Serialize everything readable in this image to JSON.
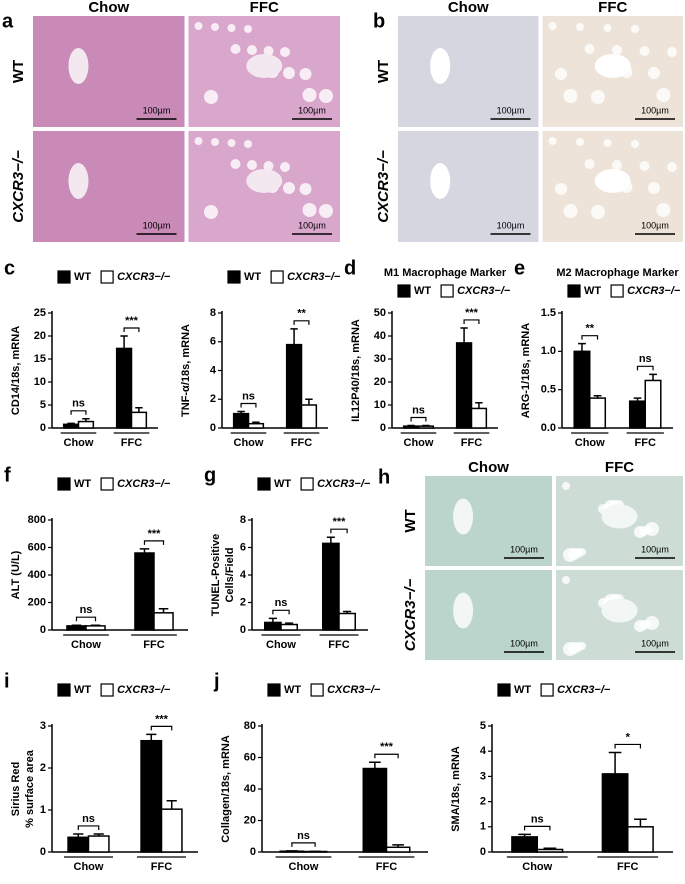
{
  "micrographs": [
    {
      "panel": "a",
      "columns": [
        "Chow",
        "FFC"
      ],
      "rows": [
        "WT",
        "CXCR3−/−"
      ],
      "scale_bar": "100µm"
    },
    {
      "panel": "b",
      "columns": [
        "Chow",
        "FFC"
      ],
      "rows": [
        "WT",
        "CXCR3−/−"
      ],
      "scale_bar": "100µm"
    },
    {
      "panel": "h",
      "columns": [
        "Chow",
        "FFC"
      ],
      "rows": [
        "WT",
        "CXCR3−/−"
      ],
      "scale_bar": "100µm"
    }
  ],
  "chart_data": [
    {
      "type": "bar",
      "panel": "c",
      "ylabel": [
        "CD14/18s, mRNA"
      ],
      "categories": [
        "Chow",
        "FFC"
      ],
      "ylim": [
        0,
        25
      ],
      "yticks": [
        0,
        5,
        10,
        15,
        20,
        25
      ],
      "significance": [
        "ns",
        "***"
      ],
      "series": [
        {
          "name": "WT",
          "color": "#000000",
          "values": [
            0.8,
            17.3
          ],
          "errors": [
            0.2,
            2.7
          ]
        },
        {
          "name": "CXCR3−/−",
          "color": "#ffffff",
          "values": [
            1.4,
            3.4
          ],
          "errors": [
            0.6,
            1.0
          ]
        }
      ]
    },
    {
      "type": "bar",
      "ylabel": [
        "TNF-α/18s, mRNA"
      ],
      "categories": [
        "Chow",
        "FFC"
      ],
      "ylim": [
        0,
        8
      ],
      "yticks": [
        0,
        2,
        4,
        6,
        8
      ],
      "significance": [
        "ns",
        "**"
      ],
      "series": [
        {
          "name": "WT",
          "color": "#000000",
          "values": [
            1.0,
            5.8
          ],
          "errors": [
            0.15,
            1.1
          ]
        },
        {
          "name": "CXCR3−/−",
          "color": "#ffffff",
          "values": [
            0.3,
            1.6
          ],
          "errors": [
            0.1,
            0.4
          ]
        }
      ]
    },
    {
      "type": "bar",
      "panel": "d",
      "title": "M1 Macrophage Marker",
      "ylabel": [
        "IL12P40/18s, mRNA"
      ],
      "categories": [
        "Chow",
        "FFC"
      ],
      "ylim": [
        0,
        50
      ],
      "yticks": [
        0,
        10,
        20,
        30,
        40,
        50
      ],
      "significance": [
        "ns",
        "***"
      ],
      "series": [
        {
          "name": "WT",
          "color": "#000000",
          "values": [
            0.8,
            37
          ],
          "errors": [
            0.3,
            6.5
          ]
        },
        {
          "name": "CXCR3−/−",
          "color": "#ffffff",
          "values": [
            0.8,
            8.5
          ],
          "errors": [
            0.3,
            2.5
          ]
        }
      ]
    },
    {
      "type": "bar",
      "panel": "e",
      "title": "M2 Macrophage Marker",
      "ylabel": [
        "ARG-1/18s, mRNA"
      ],
      "categories": [
        "Chow",
        "FFC"
      ],
      "ylim": [
        0,
        1.5
      ],
      "yticks": [
        {
          "value": 0,
          "label": "0.0"
        },
        0.5,
        {
          "value": 1,
          "label": "1.0"
        },
        1.5
      ],
      "significance": [
        "**",
        "ns"
      ],
      "series": [
        {
          "name": "WT",
          "color": "#000000",
          "values": [
            1.0,
            0.35
          ],
          "errors": [
            0.1,
            0.04
          ]
        },
        {
          "name": "CXCR3−/−",
          "color": "#ffffff",
          "values": [
            0.39,
            0.62
          ],
          "errors": [
            0.03,
            0.08
          ]
        }
      ]
    },
    {
      "type": "bar",
      "panel": "f",
      "ylabel": [
        "ALT (U/L)"
      ],
      "categories": [
        "Chow",
        "FFC"
      ],
      "ylim": [
        0,
        800
      ],
      "yticks": [
        0,
        200,
        400,
        600,
        800
      ],
      "significance": [
        "ns",
        "***"
      ],
      "series": [
        {
          "name": "WT",
          "color": "#000000",
          "values": [
            30,
            560
          ],
          "errors": [
            5,
            30
          ]
        },
        {
          "name": "CXCR3−/−",
          "color": "#ffffff",
          "values": [
            30,
            125
          ],
          "errors": [
            5,
            30
          ]
        }
      ]
    },
    {
      "type": "bar",
      "panel": "g",
      "ylabel": [
        "TUNEL-Positive",
        "Cells/Field"
      ],
      "categories": [
        "Chow",
        "FFC"
      ],
      "ylim": [
        0,
        8
      ],
      "yticks": [
        0,
        2,
        4,
        6,
        8
      ],
      "significance": [
        "ns",
        "***"
      ],
      "series": [
        {
          "name": "WT",
          "color": "#000000",
          "values": [
            0.55,
            6.3
          ],
          "errors": [
            0.3,
            0.45
          ]
        },
        {
          "name": "CXCR3−/−",
          "color": "#ffffff",
          "values": [
            0.4,
            1.2
          ],
          "errors": [
            0.1,
            0.15
          ]
        }
      ]
    },
    {
      "type": "bar",
      "panel": "i",
      "ylabel": [
        "Sirius Red",
        "% surface area"
      ],
      "categories": [
        "Chow",
        "FFC"
      ],
      "ylim": [
        0,
        3
      ],
      "yticks": [
        0,
        1,
        2,
        3
      ],
      "significance": [
        "ns",
        "***"
      ],
      "series": [
        {
          "name": "WT",
          "color": "#000000",
          "values": [
            0.35,
            2.65
          ],
          "errors": [
            0.08,
            0.15
          ]
        },
        {
          "name": "CXCR3−/−",
          "color": "#ffffff",
          "values": [
            0.38,
            1.02
          ],
          "errors": [
            0.05,
            0.2
          ]
        }
      ]
    },
    {
      "type": "bar",
      "panel": "j",
      "ylabel": [
        "Collagen/18s, mRNA"
      ],
      "categories": [
        "Chow",
        "FFC"
      ],
      "ylim": [
        0,
        80
      ],
      "yticks": [
        0,
        20,
        40,
        60,
        80
      ],
      "significance": [
        "ns",
        "***"
      ],
      "series": [
        {
          "name": "WT",
          "color": "#000000",
          "values": [
            0.5,
            53
          ],
          "errors": [
            0.2,
            4
          ]
        },
        {
          "name": "CXCR3−/−",
          "color": "#ffffff",
          "values": [
            0.3,
            3
          ],
          "errors": [
            0.1,
            1.5
          ]
        }
      ]
    },
    {
      "type": "bar",
      "ylabel": [
        "SMA/18s, mRNA"
      ],
      "categories": [
        "Chow",
        "FFC"
      ],
      "ylim": [
        0,
        5
      ],
      "yticks": [
        0,
        1,
        2,
        3,
        4,
        5
      ],
      "significance": [
        "ns",
        "*"
      ],
      "series": [
        {
          "name": "WT",
          "color": "#000000",
          "values": [
            0.6,
            3.1
          ],
          "errors": [
            0.1,
            0.85
          ]
        },
        {
          "name": "CXCR3−/−",
          "color": "#ffffff",
          "values": [
            0.1,
            1.0
          ],
          "errors": [
            0.05,
            0.3
          ]
        }
      ]
    }
  ]
}
